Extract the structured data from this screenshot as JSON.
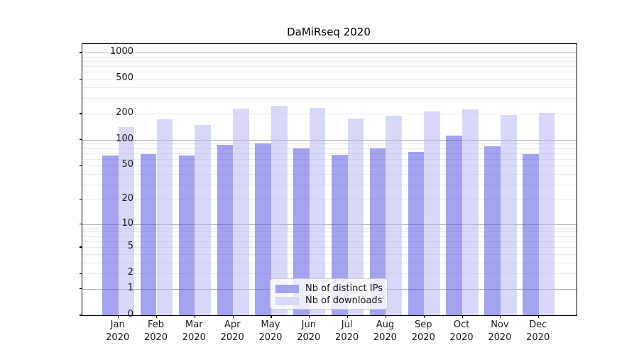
{
  "title": "DaMiRseq 2020",
  "chart_data": {
    "type": "bar",
    "title": "DaMiRseq 2020",
    "categories": [
      "Jan",
      "Feb",
      "Mar",
      "Apr",
      "May",
      "Jun",
      "Jul",
      "Aug",
      "Sep",
      "Oct",
      "Nov",
      "Dec"
    ],
    "year_label": "2020",
    "series": [
      {
        "name": "Nb of distinct IPs",
        "color": "rgba(71,71,225,0.5)",
        "swatch_color": "#a3a3f0",
        "values": [
          66,
          68,
          66,
          87,
          91,
          80,
          67,
          79,
          72,
          112,
          84,
          68
        ]
      },
      {
        "name": "Nb of downloads",
        "color": "rgba(177,177,241,0.5)",
        "swatch_color": "#d8d8f7",
        "values": [
          140,
          172,
          148,
          230,
          244,
          232,
          175,
          188,
          213,
          223,
          194,
          202
        ]
      }
    ],
    "yscale": "log1p",
    "ylim": [
      0,
      1000
    ],
    "yticks": [
      0,
      1,
      2,
      5,
      10,
      20,
      50,
      100,
      200,
      500,
      1000
    ],
    "gridlines": {
      "major": [
        1,
        10,
        100,
        1000
      ],
      "minor": [
        2,
        3,
        4,
        5,
        6,
        7,
        8,
        9,
        20,
        30,
        40,
        50,
        60,
        70,
        80,
        90,
        200,
        300,
        400,
        500,
        600,
        700,
        800,
        900
      ]
    },
    "grid": true,
    "legend_position": "lower-center",
    "xlabel": "",
    "ylabel": ""
  },
  "legend": {
    "items": [
      {
        "label": "Nb of distinct IPs"
      },
      {
        "label": "Nb of downloads"
      }
    ]
  },
  "colors": {
    "bar_distinct_ips": "rgba(71,71,225,0.5)",
    "bar_downloads": "rgba(177,177,241,0.5)",
    "swatch_distinct_ips": "#a3a3f0",
    "swatch_downloads": "#d8d8f7",
    "major_gridline": "#b0b0b0",
    "minor_gridline": "#ebebeb",
    "spine": "#000000"
  }
}
